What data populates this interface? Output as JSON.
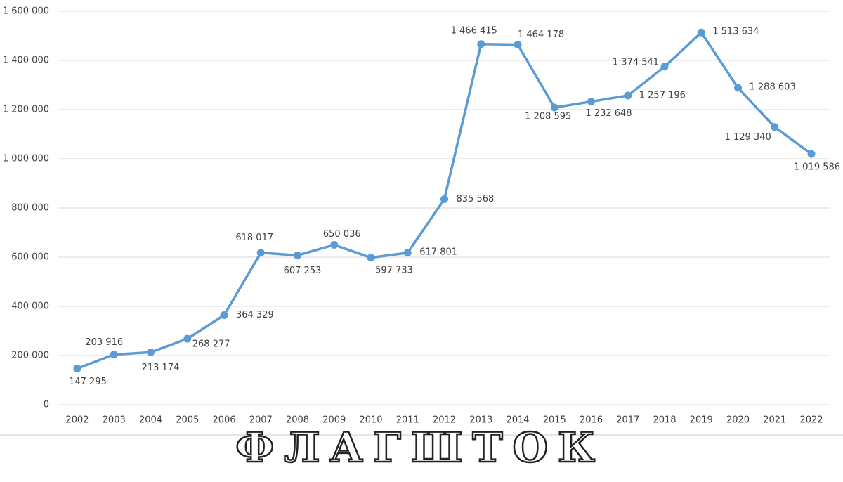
{
  "chart_data": {
    "type": "line",
    "categories": [
      "2002",
      "2003",
      "2004",
      "2005",
      "2006",
      "2007",
      "2008",
      "2009",
      "2010",
      "2011",
      "2012",
      "2013",
      "2014",
      "2015",
      "2016",
      "2017",
      "2018",
      "2019",
      "2020",
      "2021",
      "2022"
    ],
    "series": [
      {
        "color": "#5b9bd5",
        "values": [
          147295,
          203916,
          213174,
          268277,
          364329,
          618017,
          607253,
          650036,
          597733,
          617801,
          835568,
          1466415,
          1464178,
          1208595,
          1232648,
          1257196,
          1374541,
          1513634,
          1288603,
          1129340,
          1019586
        ],
        "value_labels": [
          "147 295",
          "203 916",
          "213 174",
          "268 277",
          "364 329",
          "618 017",
          "607 253",
          "650 036",
          "597 733",
          "617 801",
          "835 568",
          "1 466 415",
          "1 464 178",
          "1 208 595",
          "1 232 648",
          "1 257 196",
          "1 374 541",
          "1 513 634",
          "1 288 603",
          "1 129 340",
          "1 019 586"
        ]
      }
    ],
    "ylim": [
      0,
      1600000
    ],
    "yticks": [
      0,
      {
        "value": 200000,
        "label": "200 000"
      },
      {
        "value": 400000,
        "label": "400 000"
      },
      {
        "value": 600000,
        "label": "600 000"
      },
      {
        "value": 800000,
        "label": "800 000"
      },
      {
        "value": 1000000,
        "label": "1 000 000"
      },
      {
        "value": 1200000,
        "label": "1 200 000"
      },
      {
        "value": 1400000,
        "label": "1 400 000"
      },
      {
        "value": 1600000,
        "label": "1 600 000"
      }
    ],
    "grid": true,
    "annotation": "ФЛАГШТОК"
  }
}
